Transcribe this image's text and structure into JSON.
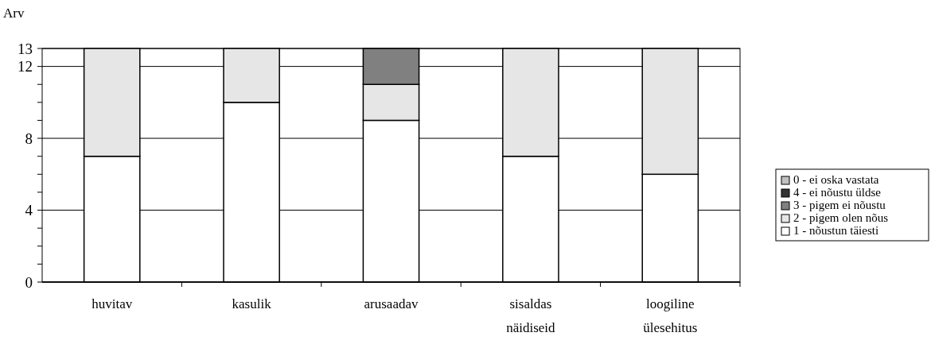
{
  "chart_data": {
    "type": "bar",
    "stacked": true,
    "ylabel": "Arv",
    "categories": [
      "huvitav",
      "kasulik",
      "arusaadav",
      "sisaldas näidiseid",
      "loogiline ülesehitus"
    ],
    "series": [
      {
        "name": "1 - nõustun täiesti",
        "color": "#ffffff",
        "values": [
          7,
          10,
          9,
          7,
          6
        ]
      },
      {
        "name": "2 - pigem olen nõus",
        "color": "#e6e6e6",
        "values": [
          6,
          3,
          2,
          6,
          7
        ]
      },
      {
        "name": "3 - pigem ei nõustu",
        "color": "#808080",
        "values": [
          0,
          0,
          2,
          0,
          0
        ]
      },
      {
        "name": "4 - ei nõustu üldse",
        "color": "#333333",
        "values": [
          0,
          0,
          0,
          0,
          0
        ]
      },
      {
        "name": "0 - ei oska vastata",
        "color": "#c0c0c0",
        "values": [
          0,
          0,
          0,
          0,
          0
        ]
      }
    ],
    "ylim": [
      0,
      13
    ],
    "yticks": [
      0,
      {
        "value": 1,
        "label": null
      },
      {
        "value": 2,
        "label": null
      },
      {
        "value": 3,
        "label": null
      },
      4,
      {
        "value": 5,
        "label": null
      },
      {
        "value": 6,
        "label": null
      },
      {
        "value": 7,
        "label": null
      },
      8,
      {
        "value": 9,
        "label": null
      },
      {
        "value": 10,
        "label": null
      },
      {
        "value": 11,
        "label": null
      },
      12,
      13
    ],
    "grid": "y",
    "legend": "right"
  }
}
